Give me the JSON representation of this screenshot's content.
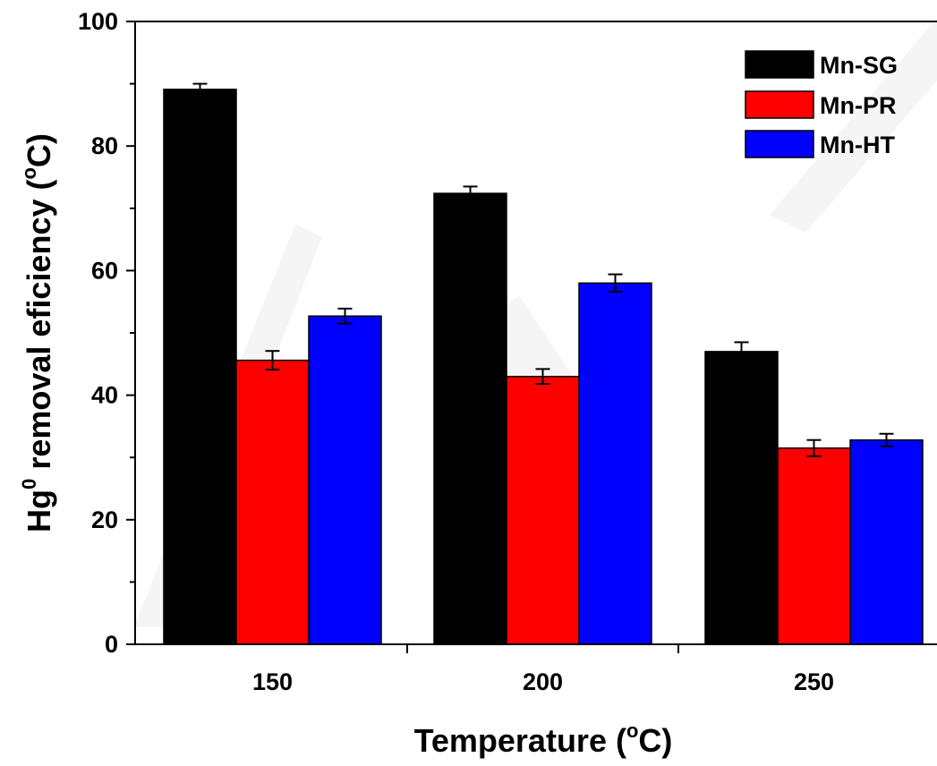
{
  "chart_data": {
    "type": "bar",
    "title": "",
    "xlabel": {
      "pre": "Temperature (",
      "sup": "o",
      "post": "C)"
    },
    "ylabel": {
      "pre": "Hg",
      "sup": "0",
      "post": " removal eficiency (",
      "sup2": "o",
      "post2": "C)"
    },
    "categories": [
      "150",
      "200",
      "250"
    ],
    "series": [
      {
        "name": "Mn-SG",
        "color": "#000000",
        "values": [
          89.1,
          72.4,
          47.0
        ],
        "errors": [
          0.9,
          1.1,
          1.5
        ]
      },
      {
        "name": "Mn-PR",
        "color": "#ff0000",
        "values": [
          45.6,
          43.0,
          31.5
        ],
        "errors": [
          1.5,
          1.2,
          1.3
        ]
      },
      {
        "name": "Mn-HT",
        "color": "#0000ff",
        "values": [
          52.7,
          58.0,
          32.8
        ],
        "errors": [
          1.2,
          1.4,
          1.0
        ]
      }
    ],
    "ylim": [
      0,
      100
    ],
    "yticks": [
      "0",
      "20",
      "40",
      "60",
      "80",
      "100"
    ],
    "ytick_values": [
      0,
      20,
      40,
      60,
      80,
      100
    ],
    "grid": false,
    "legend_position": "top-right"
  }
}
